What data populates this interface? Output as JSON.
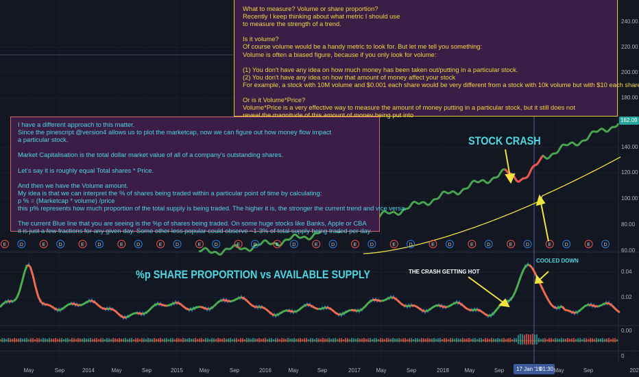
{
  "top_note": {
    "paragraphs": [
      [
        "What to measure? Volume or share proportion?",
        "Recently I keep thinking about what metric I should use",
        "to measure the strength of a trend."
      ],
      [
        "Is it volume?",
        "Of course volume would be a handy metric to look for. But let me tell you something:",
        "Volume is often a biased figure, because if you only look for volume:"
      ],
      [
        "(1) You don't have any idea on how much money has been taken out/putting in a particular stock.",
        "(2) You don't have any idea on how that amount of money affect your stock",
        "For example, a stock with 10M volume and $0.001 each share would be very different from a stock with 10k volume but with $10 each share,,,,"
      ],
      [
        "Or is it Volume*Price?",
        "Volume*Price is a very effective way to measure the amount of money putting in a particular stock, but it still does not",
        "reveal the magnitude of this amount of money being put into"
      ]
    ]
  },
  "left_note": {
    "paragraphs": [
      [
        "I have a different approach to this matter.",
        "Since the pinescript @version4 allows us to plot the marketcap, now we can figure out how money flow impact",
        "a particular stock."
      ],
      [
        "Market Capitalisation is the total dollar market value of all of a company's outstanding shares."
      ],
      [
        "Let's say it is roughly equal Total shares * Price."
      ],
      [
        "And then we have the Volume amount.",
        "My idea is that we can interpret the % of shares being traded within a particular point of time by calculating:",
        "p % = (Marketcap * volume) /price",
        "this p% represents how much proportion of the total supply is being traded. The higher it is, the stronger the current trend and vice versa."
      ],
      [
        "The current Blue line that you are seeing is the %p of shares being traded. On some huge stocks like Banks, Apple or CBA",
        "it is just a few fractions for any given day. Some other less popular could observe ~1-3% of total supply being traded per day."
      ]
    ]
  },
  "annotations": {
    "stock_crash": "STOCK CRASH",
    "pane_title": "%p SHARE PROPORTION vs AVAILABLE SUPPLY",
    "crash_hot": "THE CRASH GETTING HOT",
    "cooled": "COOLED DOWN"
  },
  "price_axis": [
    "240.00",
    "220.00",
    "200.00",
    "180.00",
    "140.00",
    "120.00",
    "100.00",
    "80.00",
    "60.00"
  ],
  "last_price": "162.09",
  "lower_axis": [
    "0.04",
    "0.02",
    "0.00",
    "0"
  ],
  "time_axis": [
    "May",
    "Sep",
    "2014",
    "May",
    "Sep",
    "2015",
    "May",
    "Sep",
    "2016",
    "May",
    "Sep",
    "2017",
    "May",
    "Sep",
    "2018",
    "May",
    "Sep",
    "May",
    "Sep",
    "202"
  ],
  "crosshair": {
    "date": "17 Jan '19",
    "time": "01:30"
  },
  "event_markers": [
    "E",
    "D",
    "E",
    "D",
    "E",
    "D",
    "E",
    "D",
    "E",
    "D",
    "E",
    "D",
    "E",
    "D",
    "E",
    "D",
    "E",
    "D",
    "E",
    "D",
    "E",
    "D",
    "E",
    "D",
    "E",
    "D",
    "E",
    "D",
    "E",
    "D",
    "E",
    "D"
  ]
}
